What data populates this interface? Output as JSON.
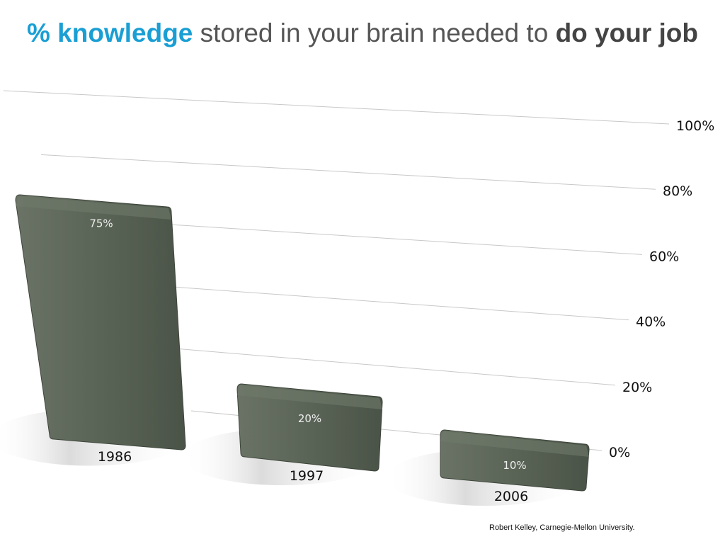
{
  "title": {
    "part1": "% knowledge",
    "part2": " stored in your brain needed to ",
    "part3": "do your job"
  },
  "chart_data": {
    "type": "bar",
    "categories": [
      "1986",
      "1997",
      "2006"
    ],
    "values": [
      75,
      20,
      10
    ],
    "data_labels": [
      "75%",
      "20%",
      "10%"
    ],
    "ylim": [
      0,
      100
    ],
    "yticks": [
      "0%",
      "20%",
      "40%",
      "60%",
      "80%",
      "100%"
    ],
    "grid": true,
    "bar_color": "#5a6456"
  },
  "credit": "Robert Kelley, Carnegie-Mellon University."
}
